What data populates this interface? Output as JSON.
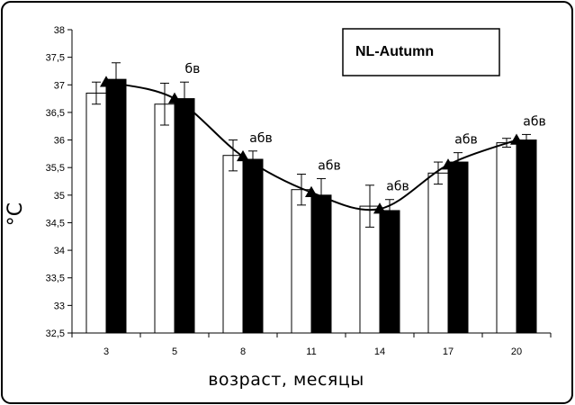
{
  "chart_data": {
    "type": "bar",
    "title": "",
    "xlabel": "возраст, месяцы",
    "ylabel": "°C",
    "ylim": [
      32.5,
      38
    ],
    "yticks": [
      "32,5",
      "33",
      "33,5",
      "34",
      "34,5",
      "35",
      "35,5",
      "36",
      "36,5",
      "37",
      "37,5",
      "38"
    ],
    "categories": [
      "3",
      "5",
      "8",
      "11",
      "14",
      "17",
      "20"
    ],
    "legend_label": "NL-Autumn",
    "legend_position": "top-right",
    "grid": false,
    "series": [
      {
        "name": "",
        "color": "#ffffff",
        "values": [
          36.85,
          36.65,
          35.72,
          35.1,
          34.8,
          35.4,
          35.95
        ],
        "errors": [
          0.2,
          0.38,
          0.28,
          0.28,
          0.38,
          0.2,
          0.08
        ]
      },
      {
        "name": "",
        "color": "#000000",
        "values": [
          37.1,
          36.75,
          35.65,
          35.0,
          34.72,
          35.6,
          36.0
        ],
        "errors": [
          0.3,
          0.3,
          0.15,
          0.3,
          0.2,
          0.17,
          0.1
        ]
      }
    ],
    "trend": {
      "marker": "triangle",
      "values": [
        37.05,
        36.75,
        35.7,
        35.05,
        34.75,
        35.55,
        36.0
      ]
    },
    "annotations": [
      "бв",
      "абв",
      "абв",
      "абв",
      "абв",
      "абв"
    ],
    "annotation_categories": [
      "5",
      "8",
      "11",
      "14",
      "17",
      "20"
    ]
  }
}
